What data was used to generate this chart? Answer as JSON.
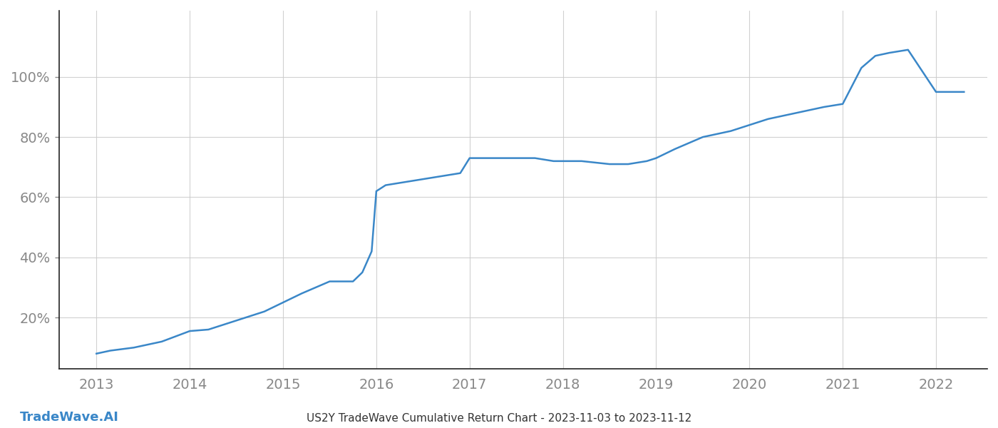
{
  "x_values": [
    2013.0,
    2013.15,
    2013.4,
    2013.7,
    2014.0,
    2014.2,
    2014.5,
    2014.8,
    2015.0,
    2015.2,
    2015.5,
    2015.75,
    2015.85,
    2015.95,
    2016.0,
    2016.1,
    2016.3,
    2016.5,
    2016.7,
    2016.9,
    2017.0,
    2017.2,
    2017.5,
    2017.7,
    2017.9,
    2018.0,
    2018.2,
    2018.5,
    2018.7,
    2018.9,
    2019.0,
    2019.2,
    2019.5,
    2019.8,
    2020.0,
    2020.2,
    2020.5,
    2020.8,
    2021.0,
    2021.1,
    2021.2,
    2021.35,
    2021.5,
    2021.7,
    2022.0,
    2022.3
  ],
  "y_values": [
    0.08,
    0.09,
    0.1,
    0.12,
    0.155,
    0.16,
    0.19,
    0.22,
    0.25,
    0.28,
    0.32,
    0.32,
    0.35,
    0.42,
    0.62,
    0.64,
    0.65,
    0.66,
    0.67,
    0.68,
    0.73,
    0.73,
    0.73,
    0.73,
    0.72,
    0.72,
    0.72,
    0.71,
    0.71,
    0.72,
    0.73,
    0.76,
    0.8,
    0.82,
    0.84,
    0.86,
    0.88,
    0.9,
    0.91,
    0.97,
    1.03,
    1.07,
    1.08,
    1.09,
    0.95,
    0.95
  ],
  "line_color": "#3a87c8",
  "line_width": 1.8,
  "background_color": "#ffffff",
  "grid_color": "#cccccc",
  "title": "US2Y TradeWave Cumulative Return Chart - 2023-11-03 to 2023-11-12",
  "watermark": "TradeWave.AI",
  "ytick_labels": [
    "20%",
    "40%",
    "60%",
    "80%",
    "100%"
  ],
  "ytick_values": [
    0.2,
    0.4,
    0.6,
    0.8,
    1.0
  ],
  "xlim": [
    2012.6,
    2022.55
  ],
  "ylim": [
    0.03,
    1.22
  ],
  "xtick_years": [
    2013,
    2014,
    2015,
    2016,
    2017,
    2018,
    2019,
    2020,
    2021,
    2022
  ],
  "tick_color": "#888888",
  "spine_color": "#222222",
  "left_spine_color": "#222222",
  "title_fontsize": 11,
  "watermark_fontsize": 13,
  "tick_fontsize": 14
}
